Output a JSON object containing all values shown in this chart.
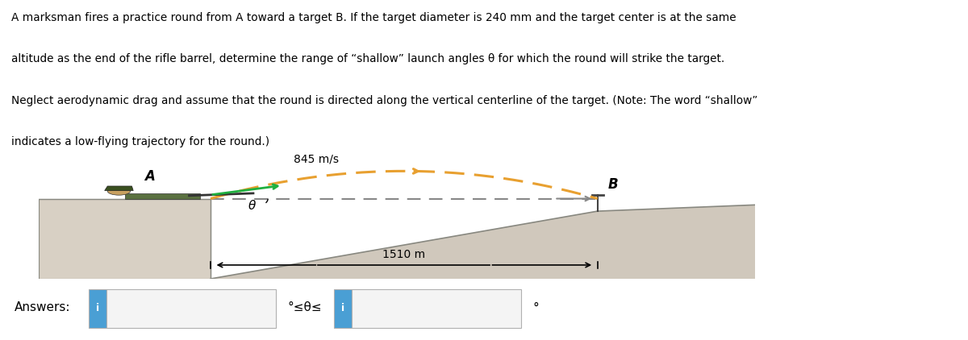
{
  "problem_text": [
    "A marksman fires a practice round from A toward a target B. If the target diameter is 240 mm and the target center is at the same",
    "altitude as the end of the rifle barrel, determine the range of “shallow” launch angles θ for which the round will strike the target.",
    "Neglect aerodynamic drag and assume that the round is directed along the vertical centerline of the target. (Note: The word “shallow”",
    "indicates a low-flying trajectory for the round.)"
  ],
  "speed_label": "845 m/s",
  "distance_label": "1510 m",
  "label_A": "A",
  "label_B": "B",
  "label_theta": "θ",
  "answers_label": "Answers:",
  "angle_range_text": "°≤θ≤",
  "degree_symbol": "°",
  "bg_color": "#ffffff",
  "text_color": "#000000",
  "platform_color_light": "#d8d0c4",
  "platform_shadow": "#b8b0a4",
  "ground_color": "#d0c8bc",
  "ground_edge": "#888880",
  "trajectory_color": "#e8a030",
  "dashed_line_color": "#888888",
  "arrow_color": "#20b040",
  "answer_box_color": "#4a9fd4",
  "answer_box_text": "#ffffff",
  "answer_border_color": "#b0b0b0",
  "answer_input_color": "#f4f4f4",
  "target_post_color": "#444444"
}
